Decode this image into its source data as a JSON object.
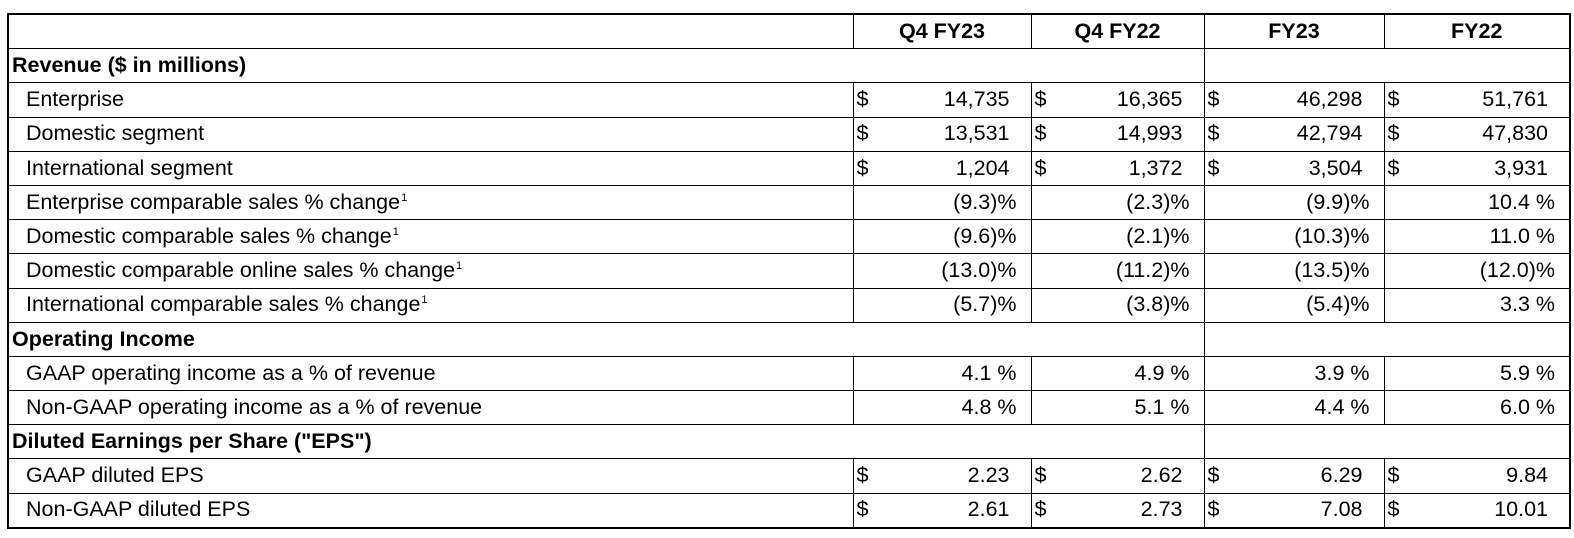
{
  "header": {
    "columns": [
      "Q4 FY23",
      "Q4 FY22",
      "FY23",
      "FY22"
    ]
  },
  "currency_symbol": "$",
  "footnote_marker": "1",
  "sections": {
    "revenue": {
      "title": "Revenue ($ in millions)",
      "rows": [
        {
          "label": "Enterprise",
          "values": [
            "14,735",
            "16,365",
            "46,298",
            "51,761"
          ]
        },
        {
          "label": "Domestic segment",
          "values": [
            "13,531",
            "14,993",
            "42,794",
            "47,830"
          ]
        },
        {
          "label": "International segment",
          "values": [
            "1,204",
            "1,372",
            "3,504",
            "3,931"
          ]
        },
        {
          "label": "Enterprise comparable sales % change",
          "values": [
            "(9.3)%",
            "(2.3)%",
            "(9.9)%",
            "10.4 %"
          ]
        },
        {
          "label": "Domestic comparable sales % change",
          "values": [
            "(9.6)%",
            "(2.1)%",
            "(10.3)%",
            "11.0 %"
          ]
        },
        {
          "label": "Domestic comparable online sales % change",
          "values": [
            "(13.0)%",
            "(11.2)%",
            "(13.5)%",
            "(12.0)%"
          ]
        },
        {
          "label": "International comparable sales % change",
          "values": [
            "(5.7)%",
            "(3.8)%",
            "(5.4)%",
            "3.3 %"
          ]
        }
      ]
    },
    "operating_income": {
      "title": "Operating Income",
      "rows": [
        {
          "label": "GAAP operating income as a % of revenue",
          "values": [
            "4.1 %",
            "4.9 %",
            "3.9 %",
            "5.9 %"
          ]
        },
        {
          "label": "Non-GAAP operating income as a % of revenue",
          "values": [
            "4.8 %",
            "5.1 %",
            "4.4 %",
            "6.0 %"
          ]
        }
      ]
    },
    "eps": {
      "title": "Diluted Earnings per Share (\"EPS\")",
      "rows": [
        {
          "label": "GAAP diluted EPS",
          "values": [
            "2.23",
            "2.62",
            "6.29",
            "9.84"
          ]
        },
        {
          "label": "Non-GAAP diluted EPS",
          "values": [
            "2.61",
            "2.73",
            "7.08",
            "10.01"
          ]
        }
      ]
    }
  }
}
